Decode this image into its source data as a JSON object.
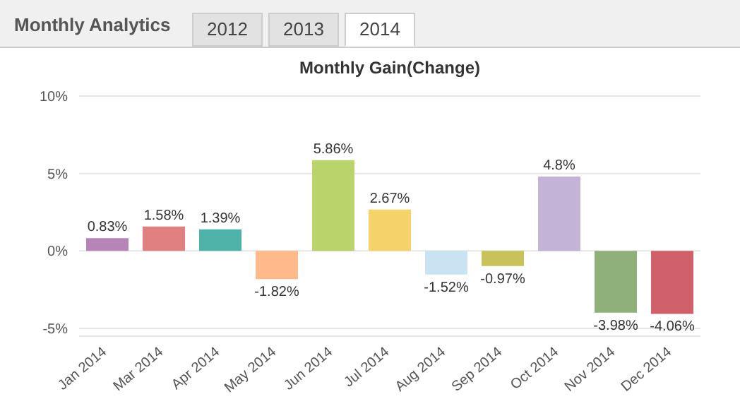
{
  "chart_data": {
    "type": "bar",
    "title": "Monthly Gain(Change)",
    "annotations": [
      "Monthly Analytics",
      "2012",
      "2013",
      "2014"
    ],
    "categories": [
      "Jan 2014",
      "Mar 2014",
      "Apr 2014",
      "May 2014",
      "Jun 2014",
      "Jul 2014",
      "Aug 2014",
      "Sep 2014",
      "Oct 2014",
      "Nov 2014",
      "Dec 2014"
    ],
    "values": [
      0.83,
      1.58,
      1.39,
      -1.82,
      5.86,
      2.67,
      -1.52,
      -0.97,
      4.8,
      -3.98,
      -4.06
    ],
    "value_labels": [
      "0.83%",
      "1.58%",
      "1.39%",
      "-1.82%",
      "5.86%",
      "2.67%",
      "-1.52%",
      "-0.97%",
      "4.8%",
      "-3.98%",
      "-4.06%"
    ],
    "colors": [
      "#b784b7",
      "#e08080",
      "#4fb3aa",
      "#ffb98a",
      "#b9d46a",
      "#f5d36a",
      "#c9e3f2",
      "#c9c15a",
      "#c3b3d6",
      "#8fb07a",
      "#d0606a"
    ],
    "ylim": [
      -5.5,
      10
    ],
    "yticks": [
      {
        "value": -5,
        "label": "-5%"
      },
      {
        "value": 0,
        "label": "0%"
      },
      {
        "value": 5,
        "label": "5%"
      },
      {
        "value": 10,
        "label": "10%"
      }
    ],
    "grid": "y"
  }
}
